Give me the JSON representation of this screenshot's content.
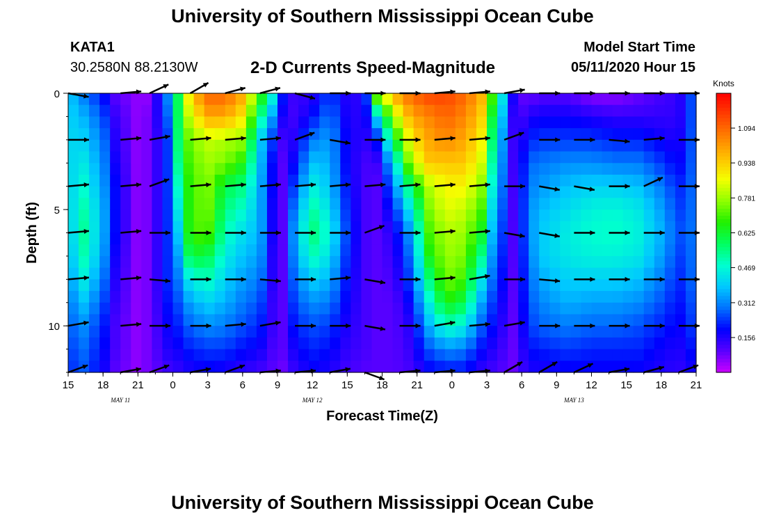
{
  "header": {
    "title": "University of Southern Mississippi Ocean Cube",
    "station": "KATA1",
    "coordinates": "30.2580N 88.2130W",
    "chart_title": "2-D Currents Speed-Magnitude",
    "model_start_label": "Model Start Time",
    "model_start_value": "05/11/2020 Hour 15"
  },
  "footer": {
    "title": "University of Southern Mississippi Ocean Cube"
  },
  "chart_data": {
    "type": "heatmap",
    "title": "2-D Currents Speed-Magnitude",
    "xlabel": "Forecast Time(Z)",
    "ylabel": "Depth (ft)",
    "x_tick_labels": [
      "15",
      "18",
      "21",
      "0",
      "3",
      "6",
      "9",
      "12",
      "15",
      "18",
      "21",
      "0",
      "3",
      "6",
      "9",
      "12",
      "15",
      "18",
      "21"
    ],
    "x_range_hours": [
      0,
      54
    ],
    "date_labels": [
      {
        "text": "MAY 11",
        "hour": 4.5
      },
      {
        "text": "MAY 12",
        "hour": 21
      },
      {
        "text": "MAY 13",
        "hour": 43.5
      }
    ],
    "y_ticks": [
      0,
      5,
      10
    ],
    "y_range_ft": [
      0,
      12
    ],
    "units_label": "Knots",
    "colorbar_ticks": [
      "0.156",
      "0.312",
      "0.469",
      "0.625",
      "0.781",
      "0.938",
      "1.094"
    ],
    "colorbar_range": [
      0,
      1.25
    ],
    "colorbar_colors": [
      "#cc00ff",
      "#5a00ff",
      "#0000ff",
      "#0070ff",
      "#00c8ff",
      "#00ffd0",
      "#00ff60",
      "#20f000",
      "#90ff00",
      "#f4ff00",
      "#ffc000",
      "#ff8000",
      "#ff4000",
      "#ff0000"
    ],
    "speed_profiles": [
      {
        "hour": 0,
        "speeds": [
          0.4,
          0.4,
          0.4,
          0.38,
          0.36,
          0.34,
          0.32,
          0.3,
          0.28,
          0.26,
          0.24,
          0.22,
          0.2
        ]
      },
      {
        "hour": 1,
        "speeds": [
          0.32,
          0.38,
          0.42,
          0.46,
          0.5,
          0.54,
          0.56,
          0.54,
          0.48,
          0.4,
          0.34,
          0.3,
          0.28
        ]
      },
      {
        "hour": 3,
        "speeds": [
          0.2,
          0.26,
          0.3,
          0.32,
          0.34,
          0.36,
          0.36,
          0.34,
          0.3,
          0.26,
          0.22,
          0.2,
          0.18
        ]
      },
      {
        "hour": 4,
        "speeds": [
          0.1,
          0.14,
          0.16,
          0.18,
          0.2,
          0.2,
          0.2,
          0.18,
          0.16,
          0.14,
          0.12,
          0.12,
          0.1
        ]
      },
      {
        "hour": 6,
        "speeds": [
          0.05,
          0.05,
          0.05,
          0.05,
          0.05,
          0.05,
          0.05,
          0.05,
          0.05,
          0.05,
          0.05,
          0.05,
          0.05
        ]
      },
      {
        "hour": 7,
        "speeds": [
          0.05,
          0.08,
          0.08,
          0.08,
          0.08,
          0.08,
          0.08,
          0.08,
          0.08,
          0.08,
          0.08,
          0.08,
          0.08
        ]
      },
      {
        "hour": 8.5,
        "speeds": [
          0.3,
          0.26,
          0.22,
          0.22,
          0.22,
          0.22,
          0.22,
          0.22,
          0.22,
          0.2,
          0.18,
          0.16,
          0.12
        ]
      },
      {
        "hour": 9.5,
        "speeds": [
          0.6,
          0.6,
          0.58,
          0.55,
          0.5,
          0.45,
          0.4,
          0.35,
          0.3,
          0.26,
          0.22,
          0.18,
          0.14
        ]
      },
      {
        "hour": 10.5,
        "speeds": [
          0.95,
          0.85,
          0.75,
          0.72,
          0.7,
          0.7,
          0.7,
          0.62,
          0.45,
          0.35,
          0.28,
          0.22,
          0.16
        ]
      },
      {
        "hour": 12,
        "speeds": [
          1.1,
          1.0,
          0.82,
          0.78,
          0.76,
          0.75,
          0.72,
          0.6,
          0.5,
          0.4,
          0.32,
          0.24,
          0.18
        ]
      },
      {
        "hour": 13.5,
        "speeds": [
          1.1,
          1.0,
          0.8,
          0.75,
          0.6,
          0.55,
          0.5,
          0.45,
          0.4,
          0.36,
          0.3,
          0.24,
          0.16
        ]
      },
      {
        "hour": 15,
        "speeds": [
          1.0,
          0.9,
          0.78,
          0.66,
          0.55,
          0.48,
          0.42,
          0.38,
          0.34,
          0.3,
          0.26,
          0.2,
          0.14
        ]
      },
      {
        "hour": 16.5,
        "speeds": [
          0.7,
          0.55,
          0.4,
          0.38,
          0.36,
          0.36,
          0.36,
          0.34,
          0.3,
          0.26,
          0.22,
          0.18,
          0.12
        ]
      },
      {
        "hour": 17.5,
        "speeds": [
          0.5,
          0.35,
          0.25,
          0.2,
          0.2,
          0.18,
          0.18,
          0.16,
          0.16,
          0.14,
          0.14,
          0.12,
          0.1
        ]
      },
      {
        "hour": 18.5,
        "speeds": [
          0.2,
          0.16,
          0.12,
          0.1,
          0.1,
          0.1,
          0.1,
          0.1,
          0.1,
          0.1,
          0.1,
          0.1,
          0.08
        ]
      },
      {
        "hour": 19.5,
        "speeds": [
          0.12,
          0.12,
          0.16,
          0.2,
          0.26,
          0.32,
          0.36,
          0.34,
          0.3,
          0.26,
          0.22,
          0.18,
          0.14
        ]
      },
      {
        "hour": 21,
        "speeds": [
          0.15,
          0.2,
          0.3,
          0.38,
          0.45,
          0.52,
          0.56,
          0.5,
          0.4,
          0.32,
          0.26,
          0.22,
          0.18
        ]
      },
      {
        "hour": 22.5,
        "speeds": [
          0.25,
          0.3,
          0.34,
          0.36,
          0.38,
          0.42,
          0.46,
          0.42,
          0.36,
          0.3,
          0.24,
          0.2,
          0.16
        ]
      },
      {
        "hour": 24,
        "speeds": [
          0.15,
          0.16,
          0.18,
          0.18,
          0.2,
          0.22,
          0.24,
          0.22,
          0.2,
          0.18,
          0.16,
          0.14,
          0.12
        ]
      },
      {
        "hour": 25.5,
        "speeds": [
          0.15,
          0.15,
          0.14,
          0.12,
          0.12,
          0.12,
          0.12,
          0.12,
          0.12,
          0.12,
          0.12,
          0.12,
          0.1
        ]
      },
      {
        "hour": 26.5,
        "speeds": [
          0.8,
          0.4,
          0.2,
          0.12,
          0.1,
          0.1,
          0.1,
          0.1,
          0.1,
          0.1,
          0.1,
          0.1,
          0.1
        ]
      },
      {
        "hour": 28,
        "speeds": [
          1.0,
          0.8,
          0.6,
          0.4,
          0.3,
          0.22,
          0.16,
          0.14,
          0.12,
          0.1,
          0.1,
          0.1,
          0.1
        ]
      },
      {
        "hour": 29.5,
        "speeds": [
          1.1,
          1.0,
          0.9,
          0.8,
          0.6,
          0.45,
          0.35,
          0.3,
          0.26,
          0.2,
          0.16,
          0.14,
          0.12
        ]
      },
      {
        "hour": 31,
        "speeds": [
          1.15,
          1.05,
          1.0,
          0.95,
          0.8,
          0.75,
          0.7,
          0.65,
          0.55,
          0.45,
          0.36,
          0.26,
          0.18
        ]
      },
      {
        "hour": 32.5,
        "speeds": [
          1.15,
          1.1,
          1.05,
          0.95,
          0.88,
          0.85,
          0.8,
          0.78,
          0.75,
          0.66,
          0.5,
          0.32,
          0.2
        ]
      },
      {
        "hour": 34,
        "speeds": [
          1.1,
          1.05,
          1.0,
          0.95,
          0.88,
          0.82,
          0.78,
          0.75,
          0.7,
          0.6,
          0.45,
          0.3,
          0.2
        ]
      },
      {
        "hour": 35.5,
        "speeds": [
          1.0,
          0.95,
          0.9,
          0.85,
          0.78,
          0.72,
          0.65,
          0.55,
          0.45,
          0.35,
          0.28,
          0.2,
          0.14
        ]
      },
      {
        "hour": 36.5,
        "speeds": [
          0.7,
          0.6,
          0.55,
          0.5,
          0.45,
          0.4,
          0.36,
          0.32,
          0.28,
          0.24,
          0.2,
          0.16,
          0.12
        ]
      },
      {
        "hour": 37.5,
        "speeds": [
          0.4,
          0.34,
          0.3,
          0.28,
          0.26,
          0.24,
          0.22,
          0.2,
          0.18,
          0.16,
          0.14,
          0.12,
          0.1
        ]
      },
      {
        "hour": 38.5,
        "speeds": [
          0.1,
          0.08,
          0.08,
          0.08,
          0.08,
          0.08,
          0.08,
          0.08,
          0.08,
          0.08,
          0.08,
          0.08,
          0.08
        ]
      },
      {
        "hour": 39.5,
        "speeds": [
          0.08,
          0.16,
          0.22,
          0.28,
          0.3,
          0.32,
          0.32,
          0.3,
          0.28,
          0.26,
          0.24,
          0.2,
          0.16
        ]
      },
      {
        "hour": 41,
        "speeds": [
          0.1,
          0.18,
          0.24,
          0.3,
          0.34,
          0.38,
          0.4,
          0.4,
          0.36,
          0.32,
          0.28,
          0.22,
          0.16
        ]
      },
      {
        "hour": 43,
        "speeds": [
          0.1,
          0.18,
          0.24,
          0.32,
          0.38,
          0.42,
          0.45,
          0.44,
          0.4,
          0.36,
          0.3,
          0.24,
          0.18
        ]
      },
      {
        "hour": 45,
        "speeds": [
          0.05,
          0.16,
          0.24,
          0.32,
          0.4,
          0.46,
          0.48,
          0.46,
          0.4,
          0.34,
          0.28,
          0.22,
          0.18
        ]
      },
      {
        "hour": 47,
        "speeds": [
          0.05,
          0.14,
          0.22,
          0.3,
          0.4,
          0.47,
          0.49,
          0.46,
          0.4,
          0.34,
          0.28,
          0.22,
          0.18
        ]
      },
      {
        "hour": 49,
        "speeds": [
          0.08,
          0.14,
          0.22,
          0.3,
          0.38,
          0.44,
          0.46,
          0.44,
          0.38,
          0.32,
          0.26,
          0.22,
          0.18
        ]
      },
      {
        "hour": 51,
        "speeds": [
          0.12,
          0.14,
          0.18,
          0.24,
          0.3,
          0.34,
          0.36,
          0.34,
          0.3,
          0.26,
          0.22,
          0.18,
          0.16
        ]
      },
      {
        "hour": 52.5,
        "speeds": [
          0.14,
          0.14,
          0.16,
          0.18,
          0.22,
          0.24,
          0.26,
          0.24,
          0.22,
          0.2,
          0.18,
          0.16,
          0.14
        ]
      },
      {
        "hour": 54,
        "speeds": [
          0.3,
          0.3,
          0.3,
          0.3,
          0.3,
          0.3,
          0.3,
          0.3,
          0.3,
          0.28,
          0.26,
          0.22,
          0.18
        ]
      }
    ],
    "vector_hours": [
      0,
      4.5,
      7,
      10.5,
      13.5,
      16.5,
      19.5,
      22.5,
      25.5,
      28.5,
      31.5,
      34.5,
      37.5,
      40.5,
      43.5,
      46.5,
      49.5,
      52.5
    ],
    "vector_depths_ft": [
      0,
      2,
      4,
      6,
      8,
      10,
      12
    ],
    "vector_angles_deg": [
      [
        -10,
        5,
        25,
        30,
        15,
        15,
        -15,
        0,
        0,
        0,
        5,
        5,
        10,
        0,
        0,
        0,
        0,
        0
      ],
      [
        0,
        5,
        10,
        5,
        5,
        5,
        20,
        -10,
        0,
        0,
        5,
        5,
        20,
        0,
        0,
        -5,
        5,
        0
      ],
      [
        5,
        5,
        20,
        5,
        5,
        5,
        5,
        5,
        5,
        5,
        5,
        5,
        0,
        -10,
        -10,
        0,
        25,
        0
      ],
      [
        5,
        5,
        0,
        0,
        0,
        0,
        0,
        0,
        20,
        0,
        5,
        5,
        -10,
        -10,
        0,
        0,
        0,
        0
      ],
      [
        5,
        5,
        -5,
        0,
        0,
        -5,
        0,
        5,
        -10,
        0,
        5,
        10,
        0,
        -5,
        0,
        0,
        0,
        0
      ],
      [
        10,
        5,
        0,
        0,
        5,
        10,
        0,
        0,
        -10,
        0,
        10,
        5,
        10,
        0,
        0,
        0,
        0,
        0
      ],
      [
        20,
        10,
        20,
        10,
        20,
        5,
        5,
        10,
        -20,
        5,
        5,
        5,
        30,
        30,
        25,
        10,
        15,
        20
      ]
    ]
  }
}
